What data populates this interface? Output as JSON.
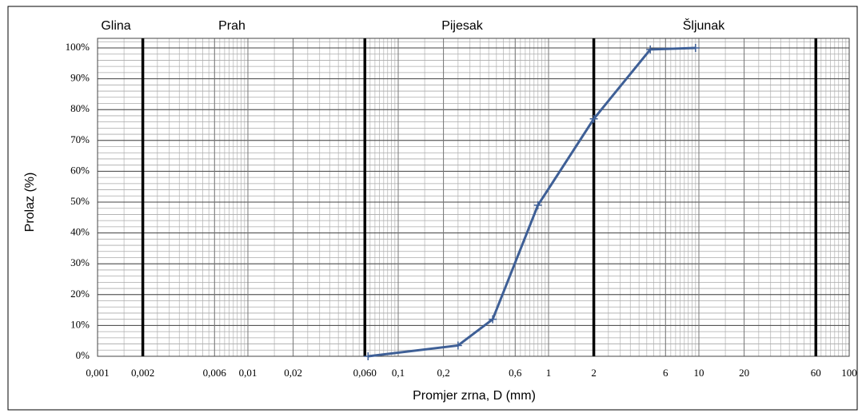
{
  "chart_data": {
    "type": "line",
    "x_label": "Promjer zrna, D (mm)",
    "y_label": "Prolaz  (%)",
    "log_x": true,
    "grid": true,
    "zones": [
      "Glina",
      "Prah",
      "Pijesak",
      "Šljunak"
    ],
    "boundaries": [
      0.002,
      0.06,
      2,
      60
    ],
    "xlim": [
      0.001,
      100
    ],
    "ylim": [
      0,
      100
    ],
    "xticks": [
      {
        "value": 0.001,
        "label": "0,001"
      },
      {
        "value": 0.002,
        "label": "0,002"
      },
      {
        "value": 0.006,
        "label": "0,006"
      },
      {
        "value": 0.01,
        "label": "0,01"
      },
      {
        "value": 0.02,
        "label": "0,02"
      },
      {
        "value": 0.06,
        "label": "0,060"
      },
      {
        "value": 0.1,
        "label": "0,1"
      },
      {
        "value": 0.2,
        "label": "0,2"
      },
      {
        "value": 0.6,
        "label": "0,6"
      },
      1,
      2,
      6,
      10,
      20,
      60,
      100
    ],
    "yticks": [
      {
        "value": 0,
        "label": "0%"
      },
      {
        "value": 10,
        "label": "10%"
      },
      {
        "value": 20,
        "label": "20%"
      },
      {
        "value": 30,
        "label": "30%"
      },
      {
        "value": 40,
        "label": "40%"
      },
      {
        "value": 50,
        "label": "50%"
      },
      {
        "value": 60,
        "label": "60%"
      },
      {
        "value": 70,
        "label": "70%"
      },
      {
        "value": 80,
        "label": "80%"
      },
      {
        "value": 90,
        "label": "90%"
      },
      {
        "value": 100,
        "label": "100%"
      }
    ],
    "series": [
      {
        "name": "Prolaz",
        "color": "#3e5f96",
        "x": [
          0.063,
          0.25,
          0.425,
          0.85,
          2,
          4.75,
          9.5
        ],
        "values": [
          0,
          3.5,
          12,
          49,
          77,
          99.5,
          100
        ]
      }
    ]
  }
}
